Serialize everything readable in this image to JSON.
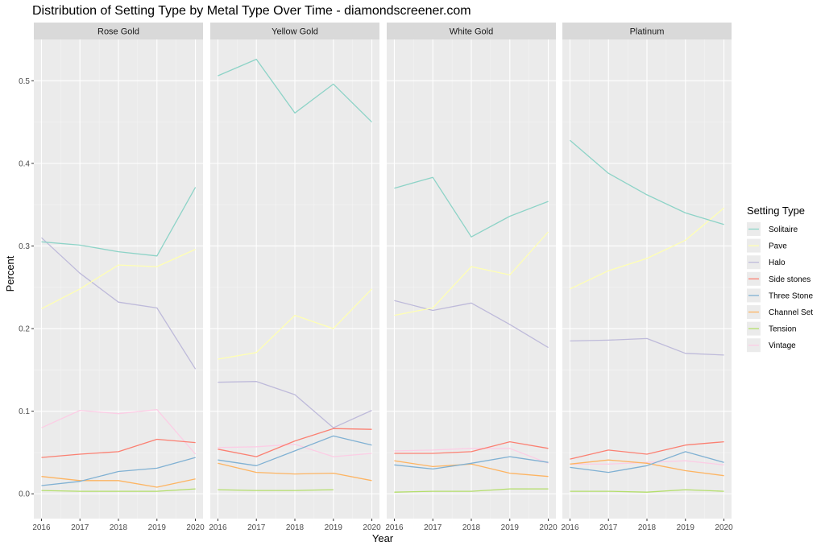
{
  "chart_data": {
    "type": "line",
    "title": "Distribution of Setting Type by Metal Type Over Time - diamondscreener.com",
    "xlabel": "Year",
    "ylabel": "Percent",
    "x": [
      2016,
      2017,
      2018,
      2019,
      2020
    ],
    "x_tick_labels": [
      "2016",
      "2017",
      "2018",
      "2019",
      "2020"
    ],
    "y_ticks": [
      0.0,
      0.1,
      0.2,
      0.3,
      0.4,
      0.5
    ],
    "y_tick_labels": [
      "0.0",
      "0.1",
      "0.2",
      "0.3",
      "0.4",
      "0.5"
    ],
    "ylim": [
      -0.03,
      0.55
    ],
    "grid": true,
    "legend": {
      "title": "Setting Type",
      "position": "right",
      "entries": [
        {
          "name": "Solitaire",
          "color": "#8dd3c7"
        },
        {
          "name": "Pave",
          "color": "#ffffb3"
        },
        {
          "name": "Halo",
          "color": "#bebada"
        },
        {
          "name": "Side stones",
          "color": "#fb8072"
        },
        {
          "name": "Three Stone",
          "color": "#80b1d3"
        },
        {
          "name": "Channel Set",
          "color": "#fdb462"
        },
        {
          "name": "Tension",
          "color": "#b3de69"
        },
        {
          "name": "Vintage",
          "color": "#fccde5"
        }
      ]
    },
    "panels": [
      {
        "label": "Rose Gold",
        "series": [
          {
            "name": "Vintage",
            "values": [
              0.08,
              0.101,
              0.097,
              0.102,
              0.048
            ]
          },
          {
            "name": "Tension",
            "values": [
              0.004,
              0.003,
              0.003,
              0.003,
              0.006
            ]
          },
          {
            "name": "Channel Set",
            "values": [
              0.021,
              0.016,
              0.016,
              0.008,
              0.018
            ]
          },
          {
            "name": "Three Stone",
            "values": [
              0.01,
              0.015,
              0.027,
              0.031,
              0.044
            ]
          },
          {
            "name": "Side stones",
            "values": [
              0.044,
              0.048,
              0.051,
              0.066,
              0.062
            ]
          },
          {
            "name": "Halo",
            "values": [
              0.31,
              0.267,
              0.232,
              0.225,
              0.151
            ]
          },
          {
            "name": "Pave",
            "values": [
              0.224,
              0.248,
              0.277,
              0.275,
              0.296
            ]
          },
          {
            "name": "Solitaire",
            "values": [
              0.305,
              0.301,
              0.293,
              0.288,
              0.371
            ]
          }
        ]
      },
      {
        "label": "Yellow Gold",
        "series": [
          {
            "name": "Vintage",
            "values": [
              0.056,
              0.057,
              0.06,
              0.045,
              0.049
            ]
          },
          {
            "name": "Tension",
            "values": [
              0.005,
              0.004,
              0.004,
              0.005,
              null
            ]
          },
          {
            "name": "Channel Set",
            "values": [
              0.037,
              0.026,
              0.024,
              0.025,
              0.016
            ]
          },
          {
            "name": "Three Stone",
            "values": [
              0.041,
              0.034,
              0.052,
              0.07,
              0.059
            ]
          },
          {
            "name": "Side stones",
            "values": [
              0.054,
              0.045,
              0.064,
              0.079,
              0.078
            ]
          },
          {
            "name": "Halo",
            "values": [
              0.135,
              0.136,
              0.12,
              0.08,
              0.101
            ]
          },
          {
            "name": "Pave",
            "values": [
              0.163,
              0.171,
              0.216,
              0.2,
              0.248
            ]
          },
          {
            "name": "Solitaire",
            "values": [
              0.506,
              0.526,
              0.461,
              0.496,
              0.45
            ]
          }
        ]
      },
      {
        "label": "White Gold",
        "series": [
          {
            "name": "Vintage",
            "values": [
              0.052,
              0.053,
              0.055,
              0.055,
              0.037
            ]
          },
          {
            "name": "Tension",
            "values": [
              0.002,
              0.003,
              0.003,
              0.006,
              0.006
            ]
          },
          {
            "name": "Channel Set",
            "values": [
              0.04,
              0.033,
              0.036,
              0.025,
              0.021
            ]
          },
          {
            "name": "Three Stone",
            "values": [
              0.035,
              0.03,
              0.037,
              0.045,
              0.038
            ]
          },
          {
            "name": "Side stones",
            "values": [
              0.049,
              0.049,
              0.051,
              0.063,
              0.055
            ]
          },
          {
            "name": "Halo",
            "values": [
              0.234,
              0.222,
              0.231,
              0.205,
              0.177
            ]
          },
          {
            "name": "Pave",
            "values": [
              0.216,
              0.225,
              0.275,
              0.265,
              0.317
            ]
          },
          {
            "name": "Solitaire",
            "values": [
              0.37,
              0.383,
              0.311,
              0.336,
              0.354
            ]
          }
        ]
      },
      {
        "label": "Platinum",
        "series": [
          {
            "name": "Vintage",
            "values": [
              0.036,
              0.036,
              0.038,
              0.04,
              0.035
            ]
          },
          {
            "name": "Tension",
            "values": [
              0.003,
              0.003,
              0.002,
              0.005,
              0.003
            ]
          },
          {
            "name": "Channel Set",
            "values": [
              0.036,
              0.041,
              0.037,
              0.028,
              0.022
            ]
          },
          {
            "name": "Three Stone",
            "values": [
              0.032,
              0.026,
              0.034,
              0.051,
              0.038
            ]
          },
          {
            "name": "Side stones",
            "values": [
              0.042,
              0.053,
              0.048,
              0.059,
              0.063
            ]
          },
          {
            "name": "Halo",
            "values": [
              0.185,
              0.186,
              0.188,
              0.17,
              0.168
            ]
          },
          {
            "name": "Pave",
            "values": [
              0.248,
              0.27,
              0.285,
              0.307,
              0.346
            ]
          },
          {
            "name": "Solitaire",
            "values": [
              0.428,
              0.388,
              0.362,
              0.34,
              0.326
            ]
          }
        ]
      }
    ]
  }
}
